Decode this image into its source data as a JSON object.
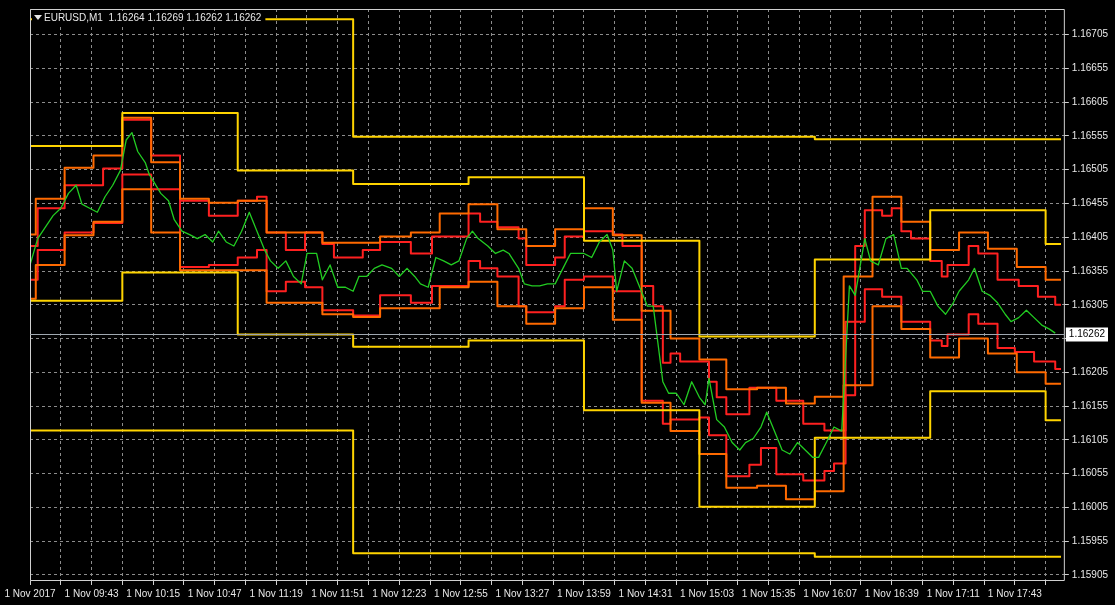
{
  "chart_data": {
    "type": "line",
    "title": "EURUSD,M1  1.16264 1.16269 1.16262 1.16262",
    "xlim": [
      "2017-11-01T09:11",
      "2017-11-01T18:09"
    ],
    "ylim": [
      1.15896,
      1.16743
    ],
    "xticks": [
      {
        "value": "2017-11-01T09:11",
        "label": "1 Nov 2017"
      },
      {
        "value": "2017-11-01T09:27",
        "label": null
      },
      {
        "value": "2017-11-01T09:43",
        "label": "1 Nov 09:43"
      },
      {
        "value": "2017-11-01T09:59",
        "label": null
      },
      {
        "value": "2017-11-01T10:15",
        "label": "1 Nov 10:15"
      },
      {
        "value": "2017-11-01T10:31",
        "label": null
      },
      {
        "value": "2017-11-01T10:47",
        "label": "1 Nov 10:47"
      },
      {
        "value": "2017-11-01T11:03",
        "label": null
      },
      {
        "value": "2017-11-01T11:19",
        "label": "1 Nov 11:19"
      },
      {
        "value": "2017-11-01T11:35",
        "label": null
      },
      {
        "value": "2017-11-01T11:51",
        "label": "1 Nov 11:51"
      },
      {
        "value": "2017-11-01T12:07",
        "label": null
      },
      {
        "value": "2017-11-01T12:23",
        "label": "1 Nov 12:23"
      },
      {
        "value": "2017-11-01T12:39",
        "label": null
      },
      {
        "value": "2017-11-01T12:55",
        "label": "1 Nov 12:55"
      },
      {
        "value": "2017-11-01T13:11",
        "label": null
      },
      {
        "value": "2017-11-01T13:27",
        "label": "1 Nov 13:27"
      },
      {
        "value": "2017-11-01T13:43",
        "label": null
      },
      {
        "value": "2017-11-01T13:59",
        "label": "1 Nov 13:59"
      },
      {
        "value": "2017-11-01T14:15",
        "label": null
      },
      {
        "value": "2017-11-01T14:31",
        "label": "1 Nov 14:31"
      },
      {
        "value": "2017-11-01T14:47",
        "label": null
      },
      {
        "value": "2017-11-01T15:03",
        "label": "1 Nov 15:03"
      },
      {
        "value": "2017-11-01T15:19",
        "label": null
      },
      {
        "value": "2017-11-01T15:35",
        "label": "1 Nov 15:35"
      },
      {
        "value": "2017-11-01T15:51",
        "label": null
      },
      {
        "value": "2017-11-01T16:07",
        "label": "1 Nov 16:07"
      },
      {
        "value": "2017-11-01T16:23",
        "label": null
      },
      {
        "value": "2017-11-01T16:39",
        "label": "1 Nov 16:39"
      },
      {
        "value": "2017-11-01T16:55",
        "label": null
      },
      {
        "value": "2017-11-01T17:11",
        "label": "1 Nov 17:11"
      },
      {
        "value": "2017-11-01T17:27",
        "label": null
      },
      {
        "value": "2017-11-01T17:43",
        "label": "1 Nov 17:43"
      },
      {
        "value": "2017-11-01T17:59",
        "label": null
      }
    ],
    "yticks": [
      1.15905,
      1.15955,
      1.16005,
      1.16055,
      1.16105,
      1.16155,
      1.16205,
      {
        "value": 1.16255,
        "label": null
      },
      1.16305,
      1.16355,
      1.16405,
      1.16455,
      1.16505,
      1.16555,
      1.16605,
      1.16655,
      1.16705
    ],
    "grid": true,
    "marker": "none",
    "line_style": "solid",
    "ref_lines": [
      {
        "axis": "y",
        "value": 1.16262,
        "label": "1.16262",
        "color": "#a0a8b0"
      }
    ],
    "series": [
      {
        "type": "line",
        "color": "#22cc22",
        "x": [
          "2017-11-01T09:11",
          "2017-11-01T09:15",
          "2017-11-01T09:19",
          "2017-11-01T09:23",
          "2017-11-01T09:27",
          "2017-11-01T09:31",
          "2017-11-01T09:35",
          "2017-11-01T09:38",
          "2017-11-01T09:42",
          "2017-11-01T09:46",
          "2017-11-01T09:50",
          "2017-11-01T09:54",
          "2017-11-01T09:58",
          "2017-11-01T10:01",
          "2017-11-01T10:04",
          "2017-11-01T10:07",
          "2017-11-01T10:11",
          "2017-11-01T10:13",
          "2017-11-01T10:19",
          "2017-11-01T10:23",
          "2017-11-01T10:26",
          "2017-11-01T10:30",
          "2017-11-01T10:34",
          "2017-11-01T10:38",
          "2017-11-01T10:42",
          "2017-11-01T10:46",
          "2017-11-01T10:49",
          "2017-11-01T10:53",
          "2017-11-01T10:57",
          "2017-11-01T11:01",
          "2017-11-01T11:05",
          "2017-11-01T11:09",
          "2017-11-01T11:13",
          "2017-11-01T11:16",
          "2017-11-01T11:20",
          "2017-11-01T11:24",
          "2017-11-01T11:28",
          "2017-11-01T11:32",
          "2017-11-01T11:35",
          "2017-11-01T11:40",
          "2017-11-01T11:43",
          "2017-11-01T11:47",
          "2017-11-01T11:51",
          "2017-11-01T11:55",
          "2017-11-01T11:59",
          "2017-11-01T12:02",
          "2017-11-01T12:06",
          "2017-11-01T12:10",
          "2017-11-01T12:14",
          "2017-11-01T12:19",
          "2017-11-01T12:23",
          "2017-11-01T12:27",
          "2017-11-01T12:31",
          "2017-11-01T12:34",
          "2017-11-01T12:38",
          "2017-11-01T12:42",
          "2017-11-01T12:46",
          "2017-11-01T12:50",
          "2017-11-01T12:54",
          "2017-11-01T12:58",
          "2017-11-01T13:01",
          "2017-11-01T13:04",
          "2017-11-01T13:09",
          "2017-11-01T13:13",
          "2017-11-01T13:17",
          "2017-11-01T13:20",
          "2017-11-01T13:25",
          "2017-11-01T13:28",
          "2017-11-01T13:32",
          "2017-11-01T13:36",
          "2017-11-01T13:40",
          "2017-11-01T13:44",
          "2017-11-01T13:47",
          "2017-11-01T13:52",
          "2017-11-01T13:55",
          "2017-11-01T13:59",
          "2017-11-01T14:03",
          "2017-11-01T14:07",
          "2017-11-01T14:11",
          "2017-11-01T14:14",
          "2017-11-01T14:16",
          "2017-11-01T14:20",
          "2017-11-01T14:24",
          "2017-11-01T14:28",
          "2017-11-01T14:32",
          "2017-11-01T14:35",
          "2017-11-01T14:40",
          "2017-11-01T14:43",
          "2017-11-01T14:47",
          "2017-11-01T14:51",
          "2017-11-01T14:55",
          "2017-11-01T14:59",
          "2017-11-01T15:02",
          "2017-11-01T15:04",
          "2017-11-01T15:08",
          "2017-11-01T15:12",
          "2017-11-01T15:16",
          "2017-11-01T15:20",
          "2017-11-01T15:23",
          "2017-11-01T15:27",
          "2017-11-01T15:31",
          "2017-11-01T15:34",
          "2017-11-01T15:38",
          "2017-11-01T15:42",
          "2017-11-01T15:46",
          "2017-11-01T15:50",
          "2017-11-01T15:54",
          "2017-11-01T15:58",
          "2017-11-01T16:01",
          "2017-11-01T16:05",
          "2017-11-01T16:09",
          "2017-11-01T16:13",
          "2017-11-01T16:17",
          "2017-11-01T16:20",
          "2017-11-01T16:25",
          "2017-11-01T16:28",
          "2017-11-01T16:32",
          "2017-11-01T16:36",
          "2017-11-01T16:40",
          "2017-11-01T16:44",
          "2017-11-01T16:47",
          "2017-11-01T16:52",
          "2017-11-01T16:55",
          "2017-11-01T16:59",
          "2017-11-01T17:03",
          "2017-11-01T17:07",
          "2017-11-01T17:11",
          "2017-11-01T17:14",
          "2017-11-01T17:19",
          "2017-11-01T17:22",
          "2017-11-01T17:26",
          "2017-11-01T17:30",
          "2017-11-01T17:34",
          "2017-11-01T17:38",
          "2017-11-01T17:41",
          "2017-11-01T17:45",
          "2017-11-01T17:49",
          "2017-11-01T17:53",
          "2017-11-01T17:57",
          "2017-11-01T18:01",
          "2017-11-01T18:04"
        ],
        "values": [
          1.16364,
          1.16403,
          1.1642,
          1.16437,
          1.16448,
          1.1647,
          1.16482,
          1.16454,
          1.16448,
          1.16442,
          1.16465,
          1.16482,
          1.16504,
          1.16549,
          1.1656,
          1.16532,
          1.16515,
          1.16498,
          1.1647,
          1.16459,
          1.16431,
          1.16414,
          1.16409,
          1.16403,
          1.16409,
          1.16398,
          1.16414,
          1.16398,
          1.16392,
          1.16414,
          1.16442,
          1.16414,
          1.16386,
          1.1637,
          1.16359,
          1.1637,
          1.16347,
          1.16336,
          1.16381,
          1.16381,
          1.16342,
          1.16364,
          1.16331,
          1.16331,
          1.16325,
          1.16347,
          1.16347,
          1.16359,
          1.16364,
          1.16359,
          1.16347,
          1.16359,
          1.16347,
          1.16336,
          1.16331,
          1.16375,
          1.1637,
          1.16364,
          1.1637,
          1.16403,
          1.16414,
          1.16403,
          1.16392,
          1.16381,
          1.16386,
          1.16381,
          1.16359,
          1.16336,
          1.16333,
          1.16333,
          1.16336,
          1.16336,
          1.16353,
          1.16381,
          1.16381,
          1.16381,
          1.16375,
          1.16398,
          1.16409,
          1.16386,
          1.16325,
          1.1637,
          1.16359,
          1.16331,
          1.16303,
          1.16303,
          1.16191,
          1.16174,
          1.16174,
          1.16157,
          1.16191,
          1.16168,
          1.16157,
          1.16196,
          1.16135,
          1.16124,
          1.16101,
          1.1609,
          1.16101,
          1.16107,
          1.16124,
          1.16146,
          1.16118,
          1.1609,
          1.16084,
          1.16101,
          1.1609,
          1.16079,
          1.16079,
          1.16101,
          1.16124,
          1.16118,
          1.16333,
          1.16319,
          1.16403,
          1.1637,
          1.16364,
          1.16403,
          1.16409,
          1.16359,
          1.16359,
          1.16342,
          1.16325,
          1.16325,
          1.16303,
          1.16291,
          1.16308,
          1.16325,
          1.16342,
          1.16359,
          1.16325,
          1.16319,
          1.16308,
          1.16291,
          1.1628,
          1.16286,
          1.16297,
          1.16286,
          1.16275,
          1.16269,
          1.16263
        ]
      },
      {
        "type": "step",
        "color": "#ffd400",
        "x": [
          "2017-11-01T09:11",
          "2017-11-01T11:59",
          "2017-11-01T15:59",
          "2017-11-01T18:07"
        ],
        "values": [
          1.16728,
          1.16554,
          1.1655,
          1.1655
        ]
      },
      {
        "type": "step",
        "color": "#ffd400",
        "x": [
          "2017-11-01T09:11",
          "2017-11-01T11:59",
          "2017-11-01T15:59",
          "2017-11-01T18:07"
        ],
        "values": [
          1.16119,
          1.15937,
          1.15932,
          1.15932
        ]
      },
      {
        "type": "step",
        "color": "#ffd400",
        "x": [
          "2017-11-01T09:11",
          "2017-11-01T09:59",
          "2017-11-01T10:59",
          "2017-11-01T11:59",
          "2017-11-01T12:59",
          "2017-11-01T13:59",
          "2017-11-01T14:59",
          "2017-11-01T15:59",
          "2017-11-01T16:59",
          "2017-11-01T17:59",
          "2017-11-01T18:07"
        ],
        "values": [
          1.1654,
          1.16589,
          1.16504,
          1.16484,
          1.16494,
          1.164,
          1.16258,
          1.16372,
          1.16445,
          1.16395,
          1.16395
        ]
      },
      {
        "type": "step",
        "color": "#ffd400",
        "x": [
          "2017-11-01T09:11",
          "2017-11-01T09:59",
          "2017-11-01T10:59",
          "2017-11-01T11:59",
          "2017-11-01T12:59",
          "2017-11-01T13:59",
          "2017-11-01T14:59",
          "2017-11-01T15:59",
          "2017-11-01T16:59",
          "2017-11-01T17:59",
          "2017-11-01T18:07"
        ],
        "values": [
          1.16311,
          1.16353,
          1.16261,
          1.16243,
          1.16252,
          1.16149,
          1.16006,
          1.16108,
          1.16177,
          1.16134,
          1.16134
        ]
      },
      {
        "type": "step",
        "color": "#ff6a00",
        "x": [
          "2017-11-01T09:11",
          "2017-11-01T09:14",
          "2017-11-01T09:29",
          "2017-11-01T09:44",
          "2017-11-01T09:59",
          "2017-11-01T10:14",
          "2017-11-01T10:29",
          "2017-11-01T10:44",
          "2017-11-01T10:59",
          "2017-11-01T11:14",
          "2017-11-01T11:43",
          "2017-11-01T12:13",
          "2017-11-01T12:29",
          "2017-11-01T12:44",
          "2017-11-01T12:59",
          "2017-11-01T13:14",
          "2017-11-01T13:29",
          "2017-11-01T13:44",
          "2017-11-01T13:59",
          "2017-11-01T14:14",
          "2017-11-01T14:29",
          "2017-11-01T14:44",
          "2017-11-01T14:59",
          "2017-11-01T15:13",
          "2017-11-01T15:29",
          "2017-11-01T15:44",
          "2017-11-01T15:59",
          "2017-11-01T16:14",
          "2017-11-01T16:29",
          "2017-11-01T16:44",
          "2017-11-01T16:59",
          "2017-11-01T17:14",
          "2017-11-01T17:29",
          "2017-11-01T17:44",
          "2017-11-01T17:59",
          "2017-11-01T18:07"
        ],
        "values": [
          1.16409,
          1.16462,
          1.16508,
          1.16526,
          1.16582,
          1.16516,
          1.16462,
          1.16456,
          1.16459,
          1.16412,
          1.16397,
          1.16406,
          1.16412,
          1.1644,
          1.16454,
          1.16417,
          1.16392,
          1.16417,
          1.16448,
          1.16408,
          1.16296,
          1.16255,
          1.16224,
          1.1618,
          1.16182,
          1.16159,
          1.16169,
          1.16347,
          1.16465,
          1.16428,
          1.16386,
          1.16412,
          1.16388,
          1.16361,
          1.16342,
          1.16342
        ]
      },
      {
        "type": "step",
        "color": "#ff6a00",
        "x": [
          "2017-11-01T09:11",
          "2017-11-01T09:14",
          "2017-11-01T09:29",
          "2017-11-01T09:44",
          "2017-11-01T09:59",
          "2017-11-01T10:14",
          "2017-11-01T10:29",
          "2017-11-01T11:14",
          "2017-11-01T11:43",
          "2017-11-01T11:59",
          "2017-11-01T12:13",
          "2017-11-01T12:44",
          "2017-11-01T12:59",
          "2017-11-01T13:14",
          "2017-11-01T13:29",
          "2017-11-01T13:44",
          "2017-11-01T13:59",
          "2017-11-01T14:14",
          "2017-11-01T14:29",
          "2017-11-01T14:44",
          "2017-11-01T14:59",
          "2017-11-01T15:13",
          "2017-11-01T15:29",
          "2017-11-01T15:44",
          "2017-11-01T15:59",
          "2017-11-01T16:14",
          "2017-11-01T16:29",
          "2017-11-01T16:44",
          "2017-11-01T16:59",
          "2017-11-01T17:14",
          "2017-11-01T17:29",
          "2017-11-01T17:44",
          "2017-11-01T17:59",
          "2017-11-01T18:07"
        ],
        "values": [
          1.16314,
          1.16364,
          1.16408,
          1.16428,
          1.16476,
          1.16412,
          1.16356,
          1.16308,
          1.16291,
          1.16287,
          1.163,
          1.16331,
          1.16339,
          1.16303,
          1.16277,
          1.163,
          1.16331,
          1.16283,
          1.1616,
          1.16118,
          1.16084,
          1.16034,
          1.16037,
          1.16017,
          1.16029,
          1.16186,
          1.16303,
          1.16269,
          1.16227,
          1.16255,
          1.16233,
          1.16205,
          1.16188,
          1.16188
        ]
      },
      {
        "type": "step",
        "color": "#ff2020",
        "x": [
          "2017-11-01T09:11",
          "2017-11-01T09:15",
          "2017-11-01T09:29",
          "2017-11-01T09:49",
          "2017-11-01T09:59",
          "2017-11-01T10:14",
          "2017-11-01T10:29",
          "2017-11-01T10:44",
          "2017-11-01T10:59",
          "2017-11-01T11:09",
          "2017-11-01T11:14",
          "2017-11-01T11:24",
          "2017-11-01T11:34",
          "2017-11-01T11:43",
          "2017-11-01T11:49",
          "2017-11-01T12:04",
          "2017-11-01T12:13",
          "2017-11-01T12:29",
          "2017-11-01T12:40",
          "2017-11-01T12:59",
          "2017-11-01T13:05",
          "2017-11-01T13:14",
          "2017-11-01T13:25",
          "2017-11-01T13:29",
          "2017-11-01T13:44",
          "2017-11-01T13:49",
          "2017-11-01T13:59",
          "2017-11-01T14:14",
          "2017-11-01T14:19",
          "2017-11-01T14:29",
          "2017-11-01T14:35",
          "2017-11-01T14:40",
          "2017-11-01T14:44",
          "2017-11-01T14:49",
          "2017-11-01T15:04",
          "2017-11-01T15:08",
          "2017-11-01T15:13",
          "2017-11-01T15:25",
          "2017-11-01T15:39",
          "2017-11-01T15:53",
          "2017-11-01T16:04",
          "2017-11-01T16:15",
          "2017-11-01T16:20",
          "2017-11-01T16:25",
          "2017-11-01T16:34",
          "2017-11-01T16:39",
          "2017-11-01T16:44",
          "2017-11-01T16:49",
          "2017-11-01T16:59",
          "2017-11-01T17:05",
          "2017-11-01T17:08",
          "2017-11-01T17:19",
          "2017-11-01T17:24",
          "2017-11-01T17:34",
          "2017-11-01T17:45",
          "2017-11-01T17:55",
          "2017-11-01T18:04",
          "2017-11-01T18:07"
        ],
        "values": [
          1.16392,
          1.16448,
          1.16482,
          1.16507,
          1.16579,
          1.16526,
          1.16459,
          1.16437,
          1.16459,
          1.16465,
          1.16412,
          1.16386,
          1.16412,
          1.16395,
          1.16375,
          1.16386,
          1.16398,
          1.16381,
          1.16406,
          1.1644,
          1.16428,
          1.1642,
          1.16403,
          1.16364,
          1.16375,
          1.16406,
          1.16414,
          1.16409,
          1.16392,
          1.16333,
          1.16303,
          1.16219,
          1.16233,
          1.16221,
          1.16191,
          1.16168,
          1.16143,
          1.16182,
          1.16163,
          1.16129,
          1.16119,
          1.16171,
          1.16392,
          1.16445,
          1.16437,
          1.16448,
          1.16414,
          1.16403,
          1.1637,
          1.16347,
          1.16364,
          1.16392,
          1.16381,
          1.16342,
          1.16333,
          1.16317,
          1.16305,
          1.16305
        ]
      },
      {
        "type": "step",
        "color": "#ff2020",
        "x": [
          "2017-11-01T09:11",
          "2017-11-01T09:15",
          "2017-11-01T09:29",
          "2017-11-01T09:44",
          "2017-11-01T09:59",
          "2017-11-01T10:14",
          "2017-11-01T10:29",
          "2017-11-01T10:44",
          "2017-11-01T10:59",
          "2017-11-01T11:09",
          "2017-11-01T11:14",
          "2017-11-01T11:24",
          "2017-11-01T11:34",
          "2017-11-01T11:43",
          "2017-11-01T11:59",
          "2017-11-01T12:13",
          "2017-11-01T12:29",
          "2017-11-01T12:40",
          "2017-11-01T12:59",
          "2017-11-01T13:05",
          "2017-11-01T13:14",
          "2017-11-01T13:25",
          "2017-11-01T13:29",
          "2017-11-01T13:44",
          "2017-11-01T13:49",
          "2017-11-01T13:59",
          "2017-11-01T14:14",
          "2017-11-01T14:29",
          "2017-11-01T14:40",
          "2017-11-01T14:44",
          "2017-11-01T14:59",
          "2017-11-01T15:04",
          "2017-11-01T15:13",
          "2017-11-01T15:25",
          "2017-11-01T15:31",
          "2017-11-01T15:39",
          "2017-11-01T15:53",
          "2017-11-01T16:04",
          "2017-11-01T16:09",
          "2017-11-01T16:15",
          "2017-11-01T16:25",
          "2017-11-01T16:34",
          "2017-11-01T16:44",
          "2017-11-01T16:59",
          "2017-11-01T17:05",
          "2017-11-01T17:08",
          "2017-11-01T17:19",
          "2017-11-01T17:24",
          "2017-11-01T17:34",
          "2017-11-01T17:43",
          "2017-11-01T17:53",
          "2017-11-01T18:04",
          "2017-11-01T18:07"
        ],
        "values": [
          1.16342,
          1.16386,
          1.16412,
          1.16426,
          1.16498,
          1.16476,
          1.16361,
          1.16364,
          1.16375,
          1.16386,
          1.16325,
          1.16339,
          1.16331,
          1.16297,
          1.16289,
          1.16319,
          1.16308,
          1.16333,
          1.1637,
          1.16359,
          1.16347,
          1.16303,
          1.16294,
          1.16303,
          1.16342,
          1.16347,
          1.16325,
          1.16163,
          1.16129,
          1.16135,
          1.16138,
          1.16112,
          1.16051,
          1.16068,
          1.16093,
          1.16054,
          1.16045,
          1.16059,
          1.1607,
          1.1628,
          1.16328,
          1.16317,
          1.1628,
          1.16252,
          1.16244,
          1.16261,
          1.16291,
          1.16277,
          1.16241,
          1.16235,
          1.16221,
          1.1621,
          1.1621
        ]
      }
    ]
  }
}
